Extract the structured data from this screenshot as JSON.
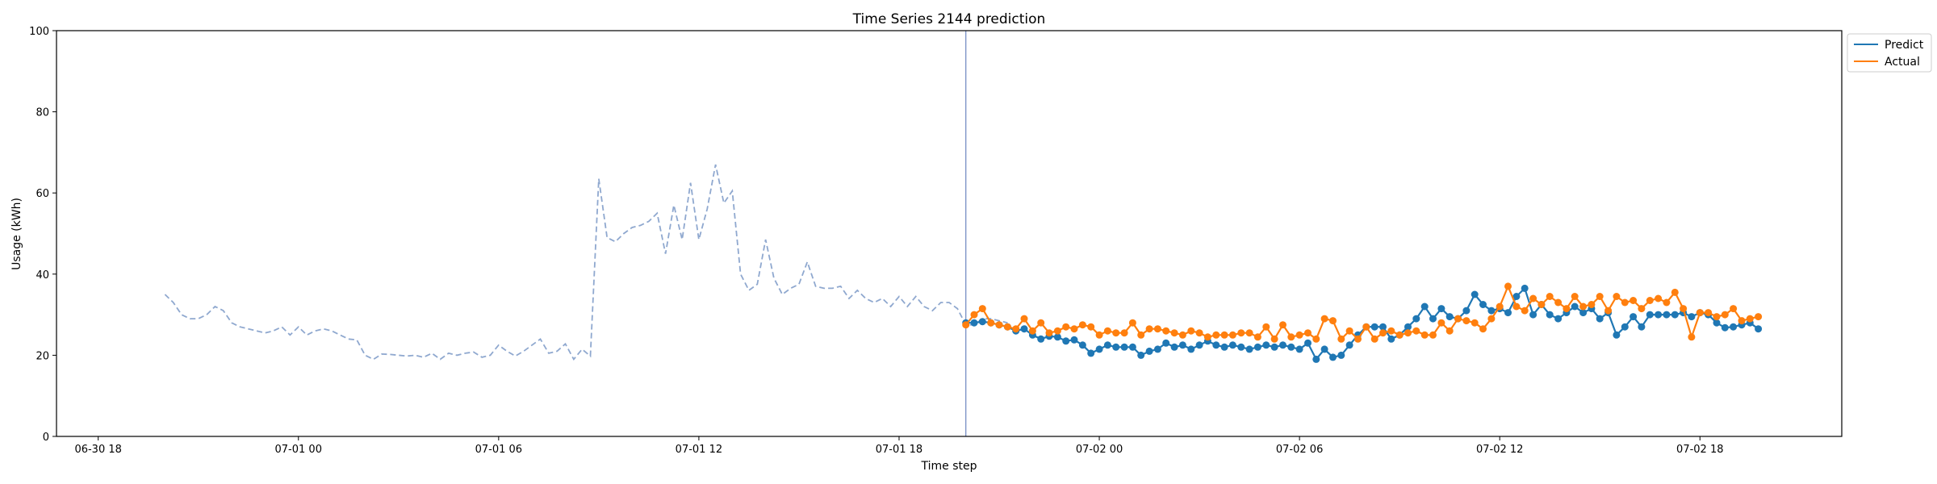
{
  "chart_data": {
    "type": "line",
    "title": "Time Series 2144 prediction",
    "xlabel": "Time step",
    "ylabel": "Usage (kWh)",
    "ylim": [
      0,
      100
    ],
    "xlim": [
      "2024-06-30T16:45",
      "2024-07-02T22:15"
    ],
    "grid": false,
    "legend_position": "upper-right-outside",
    "x_ticks": [
      {
        "t": "2024-06-30T18:00",
        "label": "06-30 18"
      },
      {
        "t": "2024-07-01T00:00",
        "label": "07-01 00"
      },
      {
        "t": "2024-07-01T06:00",
        "label": "07-01 06"
      },
      {
        "t": "2024-07-01T12:00",
        "label": "07-01 12"
      },
      {
        "t": "2024-07-01T18:00",
        "label": "07-01 18"
      },
      {
        "t": "2024-07-02T00:00",
        "label": "07-02 00"
      },
      {
        "t": "2024-07-02T06:00",
        "label": "07-02 06"
      },
      {
        "t": "2024-07-02T12:00",
        "label": "07-02 12"
      },
      {
        "t": "2024-07-02T18:00",
        "label": "07-02 18"
      }
    ],
    "y_ticks": [
      0,
      20,
      40,
      60,
      80,
      100
    ],
    "forecast_start": "2024-07-01T20:00",
    "history": {
      "start": "2024-06-30T20:00",
      "step_minutes": 15,
      "color": "#8fa8cf",
      "values": [
        35,
        33,
        30,
        29,
        29,
        30,
        32,
        31,
        28,
        27,
        26.5,
        26,
        25.5,
        26,
        27,
        25,
        27,
        25,
        26,
        26.5,
        26,
        25,
        24,
        23.8,
        20,
        19,
        20.3,
        20.2,
        20,
        19.8,
        20,
        19.5,
        20.5,
        19,
        20.5,
        20,
        20.5,
        20.8,
        19.5,
        20,
        22.5,
        21,
        19.8,
        21,
        22.5,
        24,
        20.5,
        21,
        22.8,
        19,
        21.5,
        19.8,
        63.5,
        49,
        48,
        50,
        51.5,
        52,
        53,
        55,
        45,
        57,
        48.5,
        62.5,
        48.5,
        56,
        67,
        57.5,
        60.5,
        40,
        36,
        37.5,
        48.5,
        39,
        35,
        36.5,
        37.5,
        43,
        37,
        36.5,
        36.5,
        37,
        34,
        36,
        34,
        33,
        34,
        32,
        34.5,
        32,
        34.5,
        32,
        31,
        33,
        33,
        31.5,
        27.5,
        27.5,
        29,
        29,
        28.5,
        28
      ]
    },
    "series": [
      {
        "name": "Predict",
        "color": "#1f77b4",
        "start": "2024-07-01T20:00",
        "step_minutes": 15,
        "values": [
          28,
          28,
          28.3,
          28,
          27.5,
          27,
          26,
          26.5,
          25,
          24,
          24.7,
          24.5,
          23.5,
          23.8,
          22.5,
          20.5,
          21.5,
          22.5,
          22,
          22,
          22,
          20,
          21,
          21.5,
          23,
          22,
          22.5,
          21.5,
          22.5,
          23.5,
          22.5,
          22,
          22.5,
          22,
          21.5,
          22,
          22.5,
          22,
          22.5,
          22,
          21.5,
          23,
          19,
          21.5,
          19.5,
          20,
          22.5,
          25,
          27,
          27,
          27,
          24,
          25,
          27,
          29,
          32,
          29,
          31.5,
          29.5,
          29,
          31,
          35,
          32.5,
          31,
          31.5,
          30.5,
          34.5,
          36.5,
          30,
          32.5,
          30,
          29,
          30.5,
          32,
          30.5,
          31.5,
          29,
          30.5,
          25,
          27,
          29.5,
          27,
          30,
          30,
          30,
          30,
          30.5,
          29.5,
          30.5,
          30,
          28,
          26.8,
          27,
          27.5,
          28,
          26.5
        ]
      },
      {
        "name": "Actual",
        "color": "#ff7f0e",
        "start": "2024-07-01T20:00",
        "step_minutes": 15,
        "values": [
          27.5,
          30,
          31.5,
          28,
          27.5,
          27,
          26.5,
          29,
          26,
          28,
          25.5,
          26,
          27,
          26.5,
          27.5,
          27,
          25,
          26,
          25.5,
          25.5,
          28,
          25,
          26.5,
          26.5,
          26,
          25.5,
          25,
          26,
          25.5,
          24.5,
          25,
          25,
          25,
          25.5,
          25.5,
          24.5,
          27,
          24,
          27.5,
          24.5,
          25,
          25.5,
          24,
          29,
          28.5,
          24,
          26,
          24,
          27,
          24,
          25.5,
          26,
          25,
          25.5,
          26,
          25,
          25,
          28,
          26,
          29,
          28.5,
          28,
          26.5,
          29,
          32,
          37,
          32,
          31,
          34,
          32.5,
          34.5,
          33,
          31.5,
          34.5,
          32,
          32.5,
          34.5,
          31,
          34.5,
          33,
          33.5,
          31.5,
          33.5,
          34,
          33,
          35.5,
          31.5,
          24.5,
          30.5,
          30.5,
          29.5,
          30,
          31.5,
          28.5,
          29,
          29.5
        ]
      }
    ],
    "legend": [
      {
        "label": "Predict",
        "color": "#1f77b4"
      },
      {
        "label": "Actual",
        "color": "#ff7f0e"
      }
    ]
  }
}
